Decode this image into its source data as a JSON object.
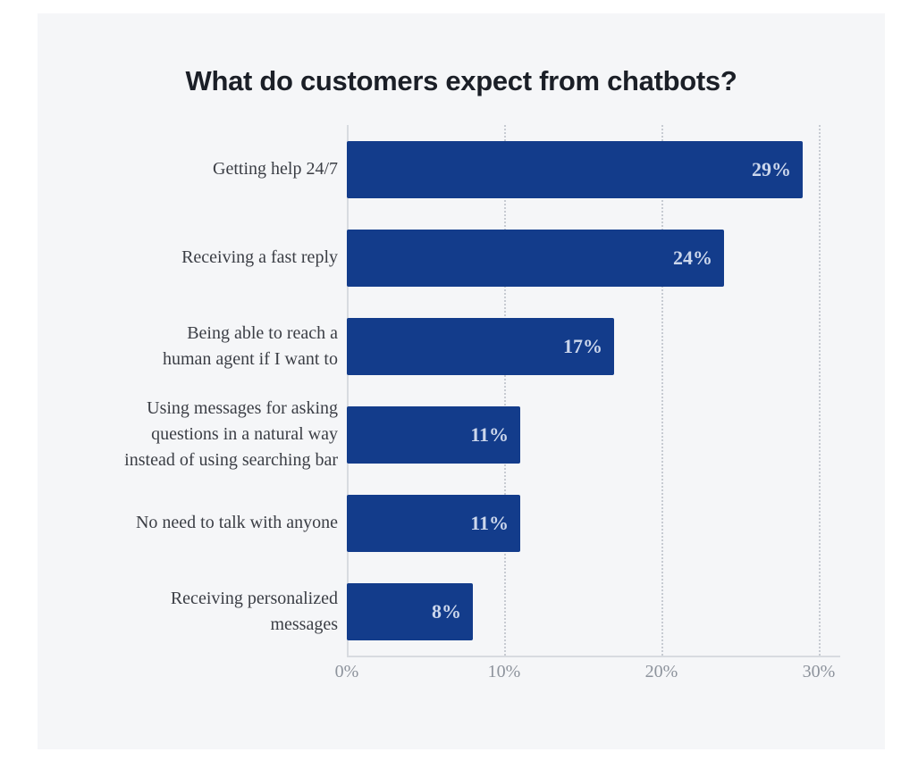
{
  "page": {
    "background": "#ffffff",
    "panel_background": "#f5f6f8"
  },
  "chart_data": {
    "type": "bar",
    "orientation": "horizontal",
    "title": "What do customers expect from chatbots?",
    "categories": [
      "Getting help 24/7",
      "Receiving a fast reply",
      "Being able to reach a\nhuman agent if I want to",
      "Using messages for asking\nquestions in a natural way\ninstead of using searching bar",
      "No need to talk with anyone",
      "Receiving personalized\nmessages"
    ],
    "values": [
      29,
      24,
      17,
      11,
      11,
      8
    ],
    "value_labels": [
      "29%",
      "24%",
      "17%",
      "11%",
      "11%",
      "8%"
    ],
    "x_ticks": [
      {
        "value": 0,
        "label": "0%"
      },
      {
        "value": 10,
        "label": "10%"
      },
      {
        "value": 20,
        "label": "20%"
      },
      {
        "value": 30,
        "label": "30%"
      }
    ],
    "xlim": [
      0,
      30
    ],
    "xlabel": "",
    "ylabel": "",
    "legend": "none",
    "grid": "vertical-dotted-at-ticks, solid-zero-line",
    "colors": {
      "bar": "#133c8b",
      "value_label": "#ccd7ec",
      "category_label": "#3b3e45",
      "tick_label": "#8d939c",
      "gridline_dotted": "#c7cbd2",
      "axis_line": "#d8dbe0",
      "title": "#1b1f27"
    }
  }
}
